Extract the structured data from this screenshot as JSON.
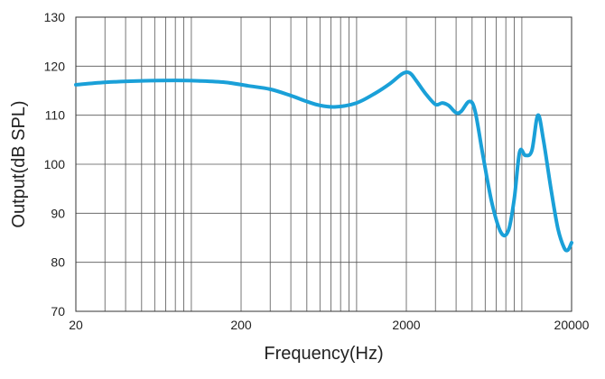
{
  "chart_data": {
    "type": "line",
    "title": "",
    "xlabel": "Frequency(Hz)",
    "ylabel": "Output(dB SPL)",
    "x_scale": "log",
    "xlim": [
      20,
      20000
    ],
    "ylim": [
      70,
      130
    ],
    "x_tick_labels": [
      "20",
      "200",
      "2000",
      "20000"
    ],
    "x_ticks": [
      20,
      200,
      2000,
      20000
    ],
    "y_ticks": [
      70,
      80,
      90,
      100,
      110,
      120,
      130
    ],
    "grid": true,
    "line_color": "#1aa0d8",
    "series": [
      {
        "name": "",
        "x": [
          20,
          30,
          50,
          80,
          110,
          160,
          220,
          300,
          400,
          500,
          600,
          750,
          1000,
          1300,
          1600,
          1900,
          2100,
          2300,
          2600,
          3000,
          3300,
          3600,
          4000,
          4300,
          4800,
          5200,
          5800,
          6600,
          7500,
          8300,
          9000,
          9700,
          10500,
          11500,
          12500,
          13500,
          15000,
          16500,
          18000,
          19000,
          20000
        ],
        "y": [
          116.2,
          116.7,
          117.0,
          117.1,
          117.0,
          116.7,
          116.0,
          115.3,
          114.0,
          112.8,
          112.0,
          111.7,
          112.5,
          114.5,
          116.5,
          118.5,
          118.6,
          117.0,
          114.5,
          112.2,
          112.5,
          112.0,
          110.5,
          110.8,
          112.8,
          111.0,
          102.0,
          92.0,
          86.0,
          86.5,
          93.0,
          102.5,
          101.8,
          102.8,
          110.0,
          105.0,
          95.0,
          87.0,
          83.0,
          82.5,
          84.0
        ]
      }
    ]
  }
}
